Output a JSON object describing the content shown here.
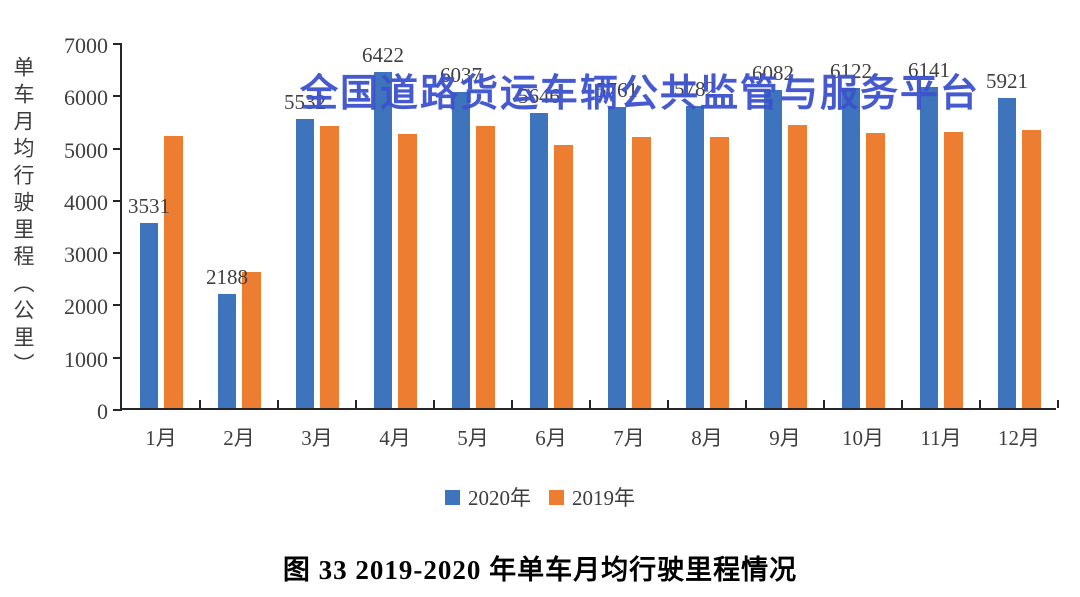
{
  "watermark": {
    "text": "全国道路货运车辆公共监管与服务平台",
    "color": "#3C52CD"
  },
  "caption": {
    "text": "图 33  2019-2020 年单车月均行驶里程情况"
  },
  "chart_data": {
    "type": "bar",
    "title": "",
    "categories": [
      "1月",
      "2月",
      "3月",
      "4月",
      "5月",
      "6月",
      "7月",
      "8月",
      "9月",
      "10月",
      "11月",
      "12月"
    ],
    "series": [
      {
        "name": "2020年",
        "color": "#3D74BB",
        "values": [
          3531,
          2188,
          5532,
          6422,
          6037,
          5646,
          5761,
          5782,
          6082,
          6122,
          6141,
          5921
        ],
        "data_labels_visible": true
      },
      {
        "name": "2019年",
        "color": "#ED7D31",
        "values": [
          5210,
          2600,
          5400,
          5250,
          5400,
          5040,
          5190,
          5190,
          5420,
          5260,
          5280,
          5320
        ],
        "data_labels_visible": false,
        "values_estimated_from_bar_heights": true
      }
    ],
    "xlabel": "",
    "ylabel": "单车月均行驶里程（公里）",
    "ylim": [
      0,
      7000
    ],
    "y_ticks": [
      0,
      1000,
      2000,
      3000,
      4000,
      5000,
      6000,
      7000
    ],
    "grid": false,
    "legend_position": "bottom",
    "axis_color": "#262626",
    "label_color": "#3f3f3f"
  }
}
